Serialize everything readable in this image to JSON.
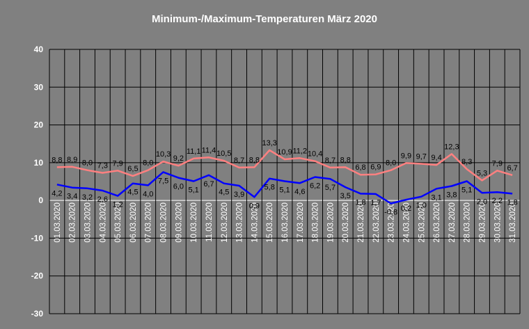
{
  "chart_data": {
    "type": "line",
    "title": "Minimum-/Maximum-Temperaturen März 2020",
    "x": [
      "01.03.2020",
      "02.03.2020",
      "03.03.2020",
      "04.03.2020",
      "05.03.2020",
      "06.03.2020",
      "07.03.2020",
      "08.03.2020",
      "09.03.2020",
      "10.03.2020",
      "11.03.2020",
      "12.03.2020",
      "13.03.2020",
      "14.03.2020",
      "15.03.2020",
      "16.03.2020",
      "17.03.2020",
      "18.03.2020",
      "19.03.2020",
      "20.03.2020",
      "21.03.2020",
      "22.03.2020",
      "23.03.2020",
      "24.03.2020",
      "25.03.2020",
      "26.03.2020",
      "27.03.2020",
      "28.03.2020",
      "29.03.2020",
      "30.03.2020",
      "31.03.2020"
    ],
    "series": [
      {
        "color": "#ff8080",
        "values": [
          8.8,
          8.9,
          8.0,
          7.3,
          7.9,
          6.5,
          8.0,
          10.3,
          9.2,
          11.1,
          11.4,
          10.5,
          8.7,
          8.8,
          13.3,
          10.9,
          11.2,
          10.4,
          8.7,
          8.8,
          6.8,
          6.9,
          8.0,
          9.9,
          9.7,
          9.4,
          12.3,
          8.3,
          5.3,
          7.9,
          6.7
        ],
        "labels": [
          "8,8",
          "8,9",
          "8,0",
          "7,3",
          "7,9",
          "6,5",
          "8,0",
          "10,3",
          "9,2",
          "11,1",
          "11,4",
          "10,5",
          "8,7",
          "8,8",
          "13,3",
          "10,9",
          "11,2",
          "10,4",
          "8,7",
          "8,8",
          "6,8",
          "6,9",
          "8,0",
          "9,9",
          "9,7",
          "9,4",
          "12,3",
          "8,3",
          "5,3",
          "7,9",
          "6,7"
        ]
      },
      {
        "color": "#0000ff",
        "values": [
          4.2,
          3.4,
          3.2,
          2.6,
          1.2,
          4.5,
          4.0,
          7.5,
          6.0,
          5.1,
          6.7,
          4.5,
          3.9,
          0.9,
          5.8,
          5.1,
          4.6,
          6.2,
          5.7,
          3.5,
          1.8,
          1.7,
          -0.8,
          0.2,
          1.0,
          3.1,
          3.8,
          5.1,
          2.0,
          2.2,
          1.8
        ],
        "labels": [
          "4,2",
          "3,4",
          "3,2",
          "2,6",
          "1,2",
          "4,5",
          "4,0",
          "7,5",
          "6,0",
          "5,1",
          "6,7",
          "4,5",
          "3,9",
          "0,9",
          "5,8",
          "5,1",
          "4,6",
          "6,2",
          "5,7",
          "3,5",
          "1,8",
          "1,7",
          "-0,8",
          "0,2",
          "1,0",
          "3,1",
          "3,8",
          "5,1",
          "2,0",
          "2,2",
          "1,8"
        ]
      }
    ],
    "ylim": [
      -30,
      40
    ],
    "yticks": [
      40,
      30,
      20,
      10,
      0,
      -10,
      -20,
      -30
    ],
    "grid": true,
    "legend": "none",
    "colors": {
      "background": "#808080",
      "gridline": "#000000",
      "zero_line": "#ffffff",
      "text": "#ffffff"
    }
  }
}
